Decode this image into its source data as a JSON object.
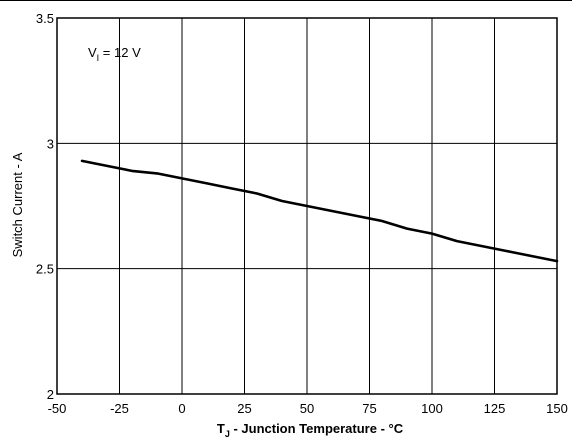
{
  "chart_data": {
    "type": "line",
    "title": "",
    "xlabel_main": "T",
    "xlabel_sub": "J",
    "xlabel_rest": " - Junction Temperature - °C",
    "ylabel": "Switch Current - A",
    "annotation_main": "V",
    "annotation_sub": "I",
    "annotation_rest": " = 12 V",
    "xlim": [
      -50,
      150
    ],
    "ylim": [
      2,
      3.5
    ],
    "x_ticks": [
      -50,
      -25,
      0,
      25,
      50,
      75,
      100,
      125,
      150
    ],
    "y_ticks": [
      2,
      2.5,
      3,
      3.5
    ],
    "grid": true,
    "line_color": "#000000",
    "series": [
      {
        "x": [
          -40,
          -30,
          -20,
          -10,
          0,
          10,
          20,
          30,
          40,
          50,
          60,
          70,
          80,
          90,
          100,
          110,
          120,
          130,
          140,
          150
        ],
        "values": [
          2.93,
          2.91,
          2.89,
          2.88,
          2.86,
          2.84,
          2.82,
          2.8,
          2.77,
          2.75,
          2.73,
          2.71,
          2.69,
          2.66,
          2.64,
          2.61,
          2.59,
          2.57,
          2.55,
          2.53
        ]
      }
    ]
  }
}
